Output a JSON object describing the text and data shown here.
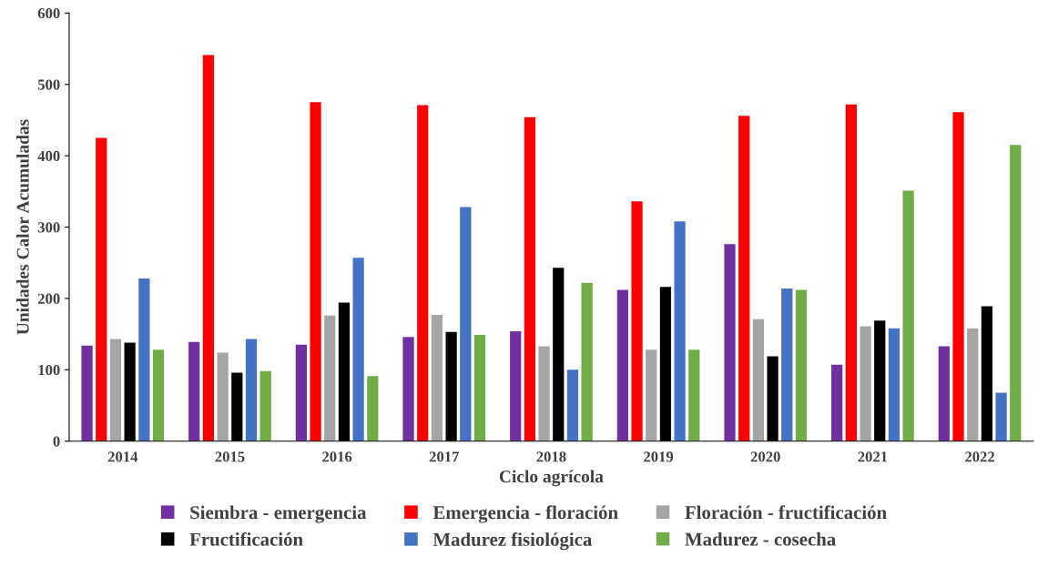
{
  "chart_data": {
    "type": "bar",
    "xlabel": "Ciclo agrícola",
    "ylabel": "Unidades Calor Acumuladas",
    "categories": [
      "2014",
      "2015",
      "2016",
      "2017",
      "2018",
      "2019",
      "2020",
      "2021",
      "2022"
    ],
    "series": [
      {
        "name": "Siembra - emergencia",
        "color": "#7030a0",
        "values": [
          134,
          139,
          135,
          146,
          154,
          212,
          276,
          107,
          133
        ]
      },
      {
        "name": "Emergencia - floración",
        "color": "#ff0000",
        "values": [
          425,
          541,
          475,
          471,
          454,
          336,
          456,
          472,
          461
        ]
      },
      {
        "name": "Floración - fructificación",
        "color": "#a5a5a5",
        "values": [
          143,
          124,
          176,
          177,
          133,
          128,
          171,
          161,
          158
        ]
      },
      {
        "name": "Fructificación",
        "color": "#000000",
        "values": [
          138,
          96,
          194,
          153,
          243,
          216,
          119,
          169,
          189
        ]
      },
      {
        "name": "Madurez fisiológica",
        "color": "#4472c4",
        "values": [
          228,
          143,
          257,
          328,
          100,
          308,
          214,
          158,
          68
        ]
      },
      {
        "name": "Madurez - cosecha",
        "color": "#70ad47",
        "values": [
          128,
          98,
          91,
          149,
          222,
          128,
          212,
          351,
          415
        ]
      }
    ],
    "ylim": [
      0,
      600
    ],
    "yticks": [
      0,
      100,
      200,
      300,
      400,
      500,
      600
    ],
    "grid": false,
    "legend": "bottom"
  }
}
